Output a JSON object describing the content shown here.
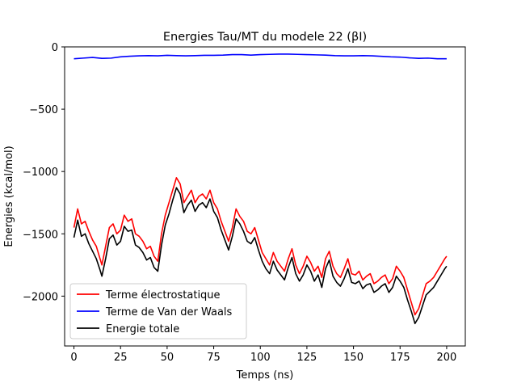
{
  "chart_data": {
    "type": "line",
    "title": "Energies Tau/MT du modele 22 (βI)",
    "xlabel": "Temps (ns)",
    "ylabel": "Energies (kcal/mol)",
    "xlim": [
      -5,
      210
    ],
    "ylim": [
      -2400,
      0
    ],
    "xticks": [
      0,
      25,
      50,
      75,
      100,
      125,
      150,
      175,
      200
    ],
    "yticks": [
      0,
      -500,
      -1000,
      -1500,
      -2000
    ],
    "xtick_labels": [
      "0",
      "25",
      "50",
      "75",
      "100",
      "125",
      "150",
      "175",
      "200"
    ],
    "ytick_labels": [
      "0",
      "−500",
      "−1000",
      "−1500",
      "−2000"
    ],
    "legend_position": "lower-left",
    "series": [
      {
        "name": "Terme électrostatique",
        "color": "#ff0000",
        "x": [
          0,
          2,
          4,
          6,
          8,
          10,
          12,
          14,
          15,
          17,
          19,
          21,
          23,
          25,
          27,
          29,
          31,
          33,
          35,
          37,
          39,
          41,
          43,
          45,
          47,
          49,
          51,
          53,
          55,
          57,
          59,
          61,
          63,
          65,
          67,
          69,
          71,
          73,
          75,
          77,
          79,
          81,
          83,
          85,
          87,
          89,
          91,
          93,
          95,
          97,
          99,
          101,
          103,
          105,
          107,
          109,
          111,
          113,
          115,
          117,
          119,
          121,
          123,
          125,
          127,
          129,
          131,
          133,
          135,
          137,
          139,
          141,
          143,
          145,
          147,
          149,
          151,
          153,
          155,
          157,
          159,
          161,
          163,
          165,
          167,
          169,
          171,
          173,
          175,
          177,
          179,
          181,
          183,
          185,
          187,
          189,
          191,
          193,
          195,
          197,
          199,
          200
        ],
        "y": [
          -1450,
          -1300,
          -1420,
          -1400,
          -1480,
          -1550,
          -1600,
          -1700,
          -1750,
          -1600,
          -1450,
          -1420,
          -1500,
          -1470,
          -1350,
          -1400,
          -1380,
          -1500,
          -1520,
          -1560,
          -1620,
          -1600,
          -1680,
          -1720,
          -1500,
          -1350,
          -1250,
          -1150,
          -1050,
          -1100,
          -1250,
          -1200,
          -1150,
          -1250,
          -1200,
          -1180,
          -1220,
          -1150,
          -1250,
          -1300,
          -1400,
          -1480,
          -1560,
          -1450,
          -1300,
          -1360,
          -1400,
          -1480,
          -1500,
          -1450,
          -1550,
          -1650,
          -1700,
          -1750,
          -1650,
          -1720,
          -1760,
          -1800,
          -1700,
          -1620,
          -1750,
          -1820,
          -1760,
          -1680,
          -1730,
          -1800,
          -1760,
          -1850,
          -1700,
          -1640,
          -1760,
          -1820,
          -1850,
          -1780,
          -1700,
          -1820,
          -1830,
          -1800,
          -1870,
          -1840,
          -1820,
          -1900,
          -1880,
          -1850,
          -1830,
          -1900,
          -1860,
          -1760,
          -1800,
          -1850,
          -1950,
          -2050,
          -2150,
          -2100,
          -2000,
          -1900,
          -1880,
          -1850,
          -1800,
          -1750,
          -1700,
          -1680
        ]
      },
      {
        "name": "Terme de Van der Waals",
        "color": "#0000ff",
        "x": [
          0,
          5,
          10,
          15,
          20,
          25,
          30,
          35,
          40,
          45,
          50,
          55,
          60,
          65,
          70,
          75,
          80,
          85,
          90,
          95,
          100,
          105,
          110,
          115,
          120,
          125,
          130,
          135,
          140,
          145,
          150,
          155,
          160,
          165,
          170,
          175,
          180,
          185,
          190,
          195,
          200
        ],
        "y": [
          -95,
          -90,
          -85,
          -92,
          -90,
          -80,
          -75,
          -72,
          -70,
          -72,
          -68,
          -70,
          -72,
          -70,
          -68,
          -68,
          -66,
          -62,
          -62,
          -66,
          -62,
          -60,
          -58,
          -58,
          -60,
          -62,
          -64,
          -66,
          -70,
          -72,
          -72,
          -70,
          -72,
          -76,
          -80,
          -82,
          -88,
          -92,
          -90,
          -95,
          -95
        ]
      },
      {
        "name": "Energie totale",
        "color": "#000000",
        "x": [
          0,
          2,
          4,
          6,
          8,
          10,
          12,
          14,
          15,
          17,
          19,
          21,
          23,
          25,
          27,
          29,
          31,
          33,
          35,
          37,
          39,
          41,
          43,
          45,
          47,
          49,
          51,
          53,
          55,
          57,
          59,
          61,
          63,
          65,
          67,
          69,
          71,
          73,
          75,
          77,
          79,
          81,
          83,
          85,
          87,
          89,
          91,
          93,
          95,
          97,
          99,
          101,
          103,
          105,
          107,
          109,
          111,
          113,
          115,
          117,
          119,
          121,
          123,
          125,
          127,
          129,
          131,
          133,
          135,
          137,
          139,
          141,
          143,
          145,
          147,
          149,
          151,
          153,
          155,
          157,
          159,
          161,
          163,
          165,
          167,
          169,
          171,
          173,
          175,
          177,
          179,
          181,
          183,
          185,
          187,
          189,
          191,
          193,
          195,
          197,
          199,
          200
        ],
        "y": [
          -1530,
          -1390,
          -1520,
          -1500,
          -1580,
          -1640,
          -1700,
          -1790,
          -1840,
          -1700,
          -1540,
          -1510,
          -1590,
          -1560,
          -1440,
          -1480,
          -1470,
          -1590,
          -1610,
          -1650,
          -1710,
          -1690,
          -1770,
          -1800,
          -1590,
          -1430,
          -1340,
          -1230,
          -1130,
          -1180,
          -1330,
          -1270,
          -1230,
          -1320,
          -1270,
          -1250,
          -1290,
          -1220,
          -1320,
          -1370,
          -1470,
          -1550,
          -1630,
          -1520,
          -1380,
          -1420,
          -1480,
          -1560,
          -1580,
          -1530,
          -1630,
          -1720,
          -1780,
          -1820,
          -1720,
          -1790,
          -1830,
          -1870,
          -1770,
          -1690,
          -1820,
          -1880,
          -1830,
          -1750,
          -1800,
          -1880,
          -1830,
          -1930,
          -1780,
          -1710,
          -1840,
          -1890,
          -1920,
          -1860,
          -1780,
          -1890,
          -1900,
          -1880,
          -1940,
          -1910,
          -1900,
          -1970,
          -1950,
          -1920,
          -1900,
          -1970,
          -1930,
          -1840,
          -1880,
          -1930,
          -2030,
          -2120,
          -2220,
          -2170,
          -2080,
          -1990,
          -1960,
          -1930,
          -1880,
          -1830,
          -1780,
          -1760
        ]
      }
    ]
  }
}
